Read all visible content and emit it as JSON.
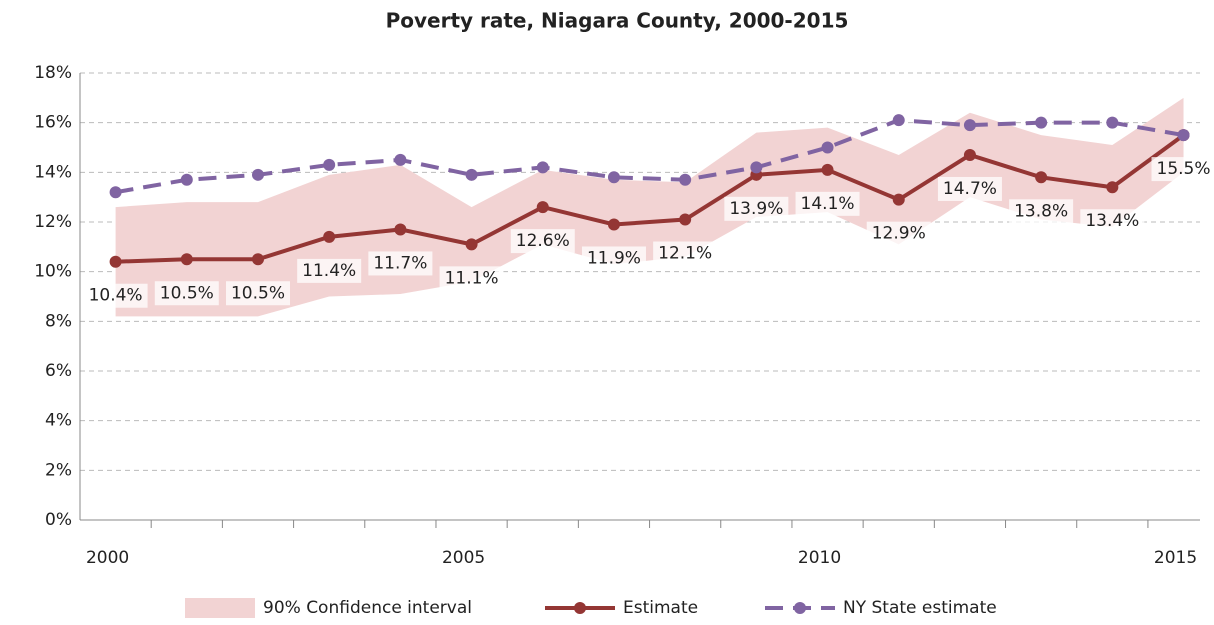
{
  "chart_data": {
    "type": "line",
    "title": "Poverty rate, Niagara County, 2000-2015",
    "x": [
      2000,
      2001,
      2002,
      2003,
      2004,
      2005,
      2006,
      2007,
      2008,
      2009,
      2010,
      2011,
      2012,
      2013,
      2014,
      2015
    ],
    "xlim": [
      1999.5,
      2015.4
    ],
    "xticks": [
      2000,
      2005,
      2010,
      2015
    ],
    "ylim": [
      0,
      18
    ],
    "yticks": [
      {
        "value": 0,
        "label": "0%"
      },
      {
        "value": 2,
        "label": "2%"
      },
      {
        "value": 4,
        "label": "4%"
      },
      {
        "value": 6,
        "label": "6%"
      },
      {
        "value": 8,
        "label": "8%"
      },
      {
        "value": 10,
        "label": "10%"
      },
      {
        "value": 12,
        "label": "12%"
      },
      {
        "value": 14,
        "label": "14%"
      },
      {
        "value": 16,
        "label": "16%"
      },
      {
        "value": 18,
        "label": "18%"
      }
    ],
    "grid": true,
    "series": [
      {
        "name": "90% Confidence interval",
        "color": "#f2d3d3",
        "style": "band",
        "upper": [
          12.6,
          12.8,
          12.8,
          13.9,
          14.3,
          12.6,
          14.1,
          13.7,
          13.6,
          15.6,
          15.8,
          14.7,
          16.4,
          15.5,
          15.1,
          17.0
        ],
        "lower": [
          8.2,
          8.2,
          8.2,
          9.0,
          9.1,
          9.6,
          11.1,
          10.3,
          10.6,
          12.2,
          12.4,
          11.1,
          13.0,
          12.1,
          11.8,
          14.0
        ]
      },
      {
        "name": "Estimate",
        "color": "#943634",
        "style": "solid",
        "values": [
          10.4,
          10.5,
          10.5,
          11.4,
          11.7,
          11.1,
          12.6,
          11.9,
          12.1,
          13.9,
          14.1,
          12.9,
          14.7,
          13.8,
          13.4,
          15.5
        ],
        "value_labels": [
          "10.4%",
          "10.5%",
          "10.5%",
          "11.4%",
          "11.7%",
          "11.1%",
          "12.6%",
          "11.9%",
          "12.1%",
          "13.9%",
          "14.1%",
          "12.9%",
          "14.7%",
          "13.8%",
          "13.4%",
          "15.5%"
        ]
      },
      {
        "name": "NY State estimate",
        "color": "#8064a2",
        "style": "dashed",
        "values": [
          13.2,
          13.7,
          13.9,
          14.3,
          14.5,
          13.9,
          14.2,
          13.8,
          13.7,
          14.2,
          15.0,
          16.1,
          15.9,
          16.0,
          16.0,
          15.5
        ]
      }
    ]
  }
}
